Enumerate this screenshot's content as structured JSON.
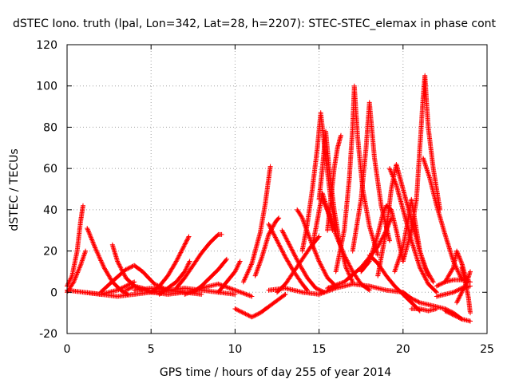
{
  "chart_data": {
    "type": "scatter",
    "title": "dSTEC Iono. truth (lpal, Lon=342, Lat=28, h=2207): STEC-STEC_elemax in phase cont",
    "xlabel": "GPS time / hours of day 255 of year 2014",
    "ylabel": "dSTEC  / TECUs",
    "xlim": [
      0,
      25
    ],
    "ylim": [
      -20,
      120
    ],
    "xticks": [
      0,
      5,
      10,
      15,
      20,
      25
    ],
    "yticks": [
      -20,
      0,
      20,
      40,
      60,
      80,
      100,
      120
    ],
    "grid": true,
    "marker": "+",
    "color": "#ff0000",
    "series": [
      {
        "x": [
          0.0,
          0.3,
          0.6,
          0.8,
          0.95
        ],
        "y": [
          3,
          8,
          20,
          34,
          42
        ]
      },
      {
        "x": [
          0.0,
          0.4,
          0.8,
          1.1
        ],
        "y": [
          0,
          5,
          13,
          20
        ]
      },
      {
        "x": [
          0.0,
          1.0,
          2.0,
          3.0,
          4.0
        ],
        "y": [
          1,
          0,
          -1,
          1,
          5
        ]
      },
      {
        "x": [
          1.2,
          1.7,
          2.2,
          2.7,
          3.2,
          3.6
        ],
        "y": [
          31,
          21,
          12,
          5,
          1,
          -1
        ]
      },
      {
        "x": [
          2.7,
          3.0,
          3.5,
          4.0,
          4.5
        ],
        "y": [
          23,
          15,
          7,
          3,
          1
        ]
      },
      {
        "x": [
          2.0,
          2.8,
          3.5,
          4.0,
          4.5,
          5.2,
          6.0
        ],
        "y": [
          0,
          6,
          11,
          13,
          10,
          4,
          1
        ]
      },
      {
        "x": [
          3.5,
          4.0,
          4.5,
          5.0,
          6.0,
          7.0
        ],
        "y": [
          1,
          3,
          2,
          0,
          -1,
          0
        ]
      },
      {
        "x": [
          4.0,
          5.0,
          6.0,
          7.0,
          8.0
        ],
        "y": [
          1,
          2,
          1,
          0,
          -1
        ]
      },
      {
        "x": [
          5.0,
          5.5,
          6.0,
          6.5,
          7.0,
          7.25
        ],
        "y": [
          0,
          3,
          8,
          15,
          23,
          27
        ]
      },
      {
        "x": [
          5.5,
          6.0,
          6.5,
          7.0,
          7.3
        ],
        "y": [
          -1,
          2,
          5,
          10,
          15
        ]
      },
      {
        "x": [
          6.5,
          7.0,
          7.5,
          8.0,
          8.5,
          9.0,
          9.2
        ],
        "y": [
          2,
          7,
          13,
          19,
          24,
          28,
          28
        ]
      },
      {
        "x": [
          7.5,
          8.0,
          8.5,
          9.0,
          9.5
        ],
        "y": [
          0,
          3,
          7,
          11,
          16
        ]
      },
      {
        "x": [
          7.0,
          8.0,
          9.0,
          10.0,
          11.0
        ],
        "y": [
          -1,
          2,
          4,
          1,
          -2
        ]
      },
      {
        "x": [
          9.0,
          9.5,
          10.0,
          10.3
        ],
        "y": [
          0,
          5,
          10,
          15
        ]
      },
      {
        "x": [
          10.0,
          10.5,
          11.0,
          11.5,
          12.0,
          13.0
        ],
        "y": [
          -8,
          -10,
          -12,
          -10,
          -7,
          -1
        ]
      },
      {
        "x": [
          10.5,
          11.0,
          11.5,
          11.8,
          12.0,
          12.1
        ],
        "y": [
          5,
          14,
          29,
          43,
          55,
          61
        ]
      },
      {
        "x": [
          11.2,
          11.6,
          12.0,
          12.4,
          12.6
        ],
        "y": [
          8,
          17,
          28,
          34,
          36
        ]
      },
      {
        "x": [
          12.0,
          12.5,
          13.0,
          13.5,
          14.0,
          14.3
        ],
        "y": [
          33,
          25,
          17,
          10,
          4,
          1
        ]
      },
      {
        "x": [
          12.5,
          13.0,
          13.5,
          14.0,
          14.5,
          15.0
        ],
        "y": [
          0,
          4,
          10,
          16,
          22,
          27
        ]
      },
      {
        "x": [
          12.8,
          13.3,
          13.8,
          14.3,
          14.8,
          15.3
        ],
        "y": [
          30,
          22,
          14,
          7,
          2,
          0
        ]
      },
      {
        "x": [
          13.7,
          14.0,
          14.5,
          15.0,
          15.5,
          16.0
        ],
        "y": [
          40,
          36,
          25,
          15,
          7,
          3
        ]
      },
      {
        "x": [
          14.0,
          14.3,
          14.6,
          14.9,
          15.1,
          15.4,
          15.7,
          16.0
        ],
        "y": [
          20,
          33,
          50,
          70,
          87,
          65,
          45,
          30
        ]
      },
      {
        "x": [
          14.6,
          14.9,
          15.2,
          15.5,
          15.8
        ],
        "y": [
          22,
          35,
          48,
          40,
          30
        ]
      },
      {
        "x": [
          15.0,
          15.2,
          15.4,
          15.6,
          15.9,
          16.2,
          16.6,
          17.0
        ],
        "y": [
          45,
          60,
          78,
          60,
          40,
          25,
          12,
          5
        ]
      },
      {
        "x": [
          15.2,
          15.6,
          16.0,
          16.5,
          17.0,
          17.5,
          18.0
        ],
        "y": [
          45,
          38,
          28,
          18,
          10,
          4,
          1
        ]
      },
      {
        "x": [
          15.5,
          15.7,
          15.9,
          16.1,
          16.3
        ],
        "y": [
          30,
          45,
          60,
          70,
          76
        ]
      },
      {
        "x": [
          15.5,
          16.5,
          17.5,
          18.5,
          19.0,
          19.3
        ],
        "y": [
          2,
          5,
          12,
          22,
          30,
          36
        ]
      },
      {
        "x": [
          16.0,
          16.5,
          16.8,
          17.0,
          17.1,
          17.3,
          17.6,
          18.0,
          18.5
        ],
        "y": [
          10,
          30,
          55,
          80,
          100,
          75,
          50,
          32,
          18
        ]
      },
      {
        "x": [
          17.0,
          17.5,
          17.8,
          18.0,
          18.3,
          18.7,
          19.2
        ],
        "y": [
          20,
          45,
          70,
          92,
          65,
          42,
          25
        ]
      },
      {
        "x": [
          17.5,
          18.0,
          18.5,
          18.8,
          19.0,
          19.3,
          19.6,
          20.0
        ],
        "y": [
          10,
          15,
          28,
          38,
          42,
          40,
          30,
          15
        ]
      },
      {
        "x": [
          18.0,
          18.5,
          19.0,
          19.5,
          20.0,
          20.5,
          21.0
        ],
        "y": [
          18,
          14,
          8,
          3,
          -1,
          -5,
          -9
        ]
      },
      {
        "x": [
          18.5,
          19.0,
          19.3,
          19.6,
          20.0,
          20.5,
          21.0,
          21.5
        ],
        "y": [
          8,
          30,
          50,
          62,
          50,
          35,
          20,
          8
        ]
      },
      {
        "x": [
          19.2,
          19.6,
          20.0,
          20.5,
          21.0,
          21.5,
          22.0
        ],
        "y": [
          60,
          52,
          40,
          25,
          12,
          4,
          0
        ]
      },
      {
        "x": [
          19.5,
          20.0,
          20.3,
          20.5,
          20.8,
          21.0,
          21.3,
          21.8
        ],
        "y": [
          10,
          22,
          35,
          45,
          30,
          20,
          12,
          5
        ]
      },
      {
        "x": [
          20.0,
          20.5,
          20.8,
          21.0,
          21.2,
          21.3,
          21.5,
          21.8,
          22.2
        ],
        "y": [
          15,
          30,
          45,
          70,
          95,
          105,
          80,
          60,
          40
        ]
      },
      {
        "x": [
          21.2,
          21.6,
          22.0,
          22.5,
          23.0,
          23.5
        ],
        "y": [
          65,
          55,
          42,
          28,
          15,
          6
        ]
      },
      {
        "x": [
          20.5,
          21.0,
          21.5,
          22.0
        ],
        "y": [
          -8,
          -8,
          -9,
          -8
        ]
      },
      {
        "x": [
          20.0,
          20.5,
          21.0,
          21.5,
          22.0,
          22.5,
          23.0,
          23.5
        ],
        "y": [
          0,
          -3,
          -5,
          -6,
          -7,
          -8,
          -10,
          -13
        ]
      },
      {
        "x": [
          22.5,
          23.0,
          23.2,
          23.5,
          23.7,
          23.8
        ],
        "y": [
          5,
          12,
          20,
          14,
          8,
          5
        ]
      },
      {
        "x": [
          22.0,
          22.5,
          23.0,
          23.5,
          24.0
        ],
        "y": [
          -2,
          -1,
          0,
          2,
          3
        ]
      },
      {
        "x": [
          23.2,
          23.5,
          23.8,
          24.0
        ],
        "y": [
          -5,
          0,
          5,
          10
        ]
      },
      {
        "x": [
          23.5,
          23.7,
          23.9,
          24.0
        ],
        "y": [
          12,
          5,
          -3,
          -10
        ]
      },
      {
        "x": [
          22.5,
          23.0,
          23.5,
          24.0
        ],
        "y": [
          -9,
          -11,
          -13,
          -14
        ]
      },
      {
        "x": [
          22.0,
          22.5,
          23.0,
          23.5,
          24.0
        ],
        "y": [
          3,
          5,
          6,
          6,
          5
        ]
      },
      {
        "x": [
          1.0,
          2.0,
          3.0,
          4.0,
          5.0,
          6.0,
          7.0,
          8.0,
          9.0,
          10.0
        ],
        "y": [
          0,
          -1,
          -2,
          -1,
          0,
          1,
          2,
          1,
          0,
          -1
        ]
      },
      {
        "x": [
          12.0,
          13.0,
          14.0,
          15.0,
          16.0,
          17.0,
          18.0,
          19.0,
          20.0
        ],
        "y": [
          1,
          2,
          0,
          -1,
          2,
          4,
          3,
          1,
          0
        ]
      }
    ]
  }
}
